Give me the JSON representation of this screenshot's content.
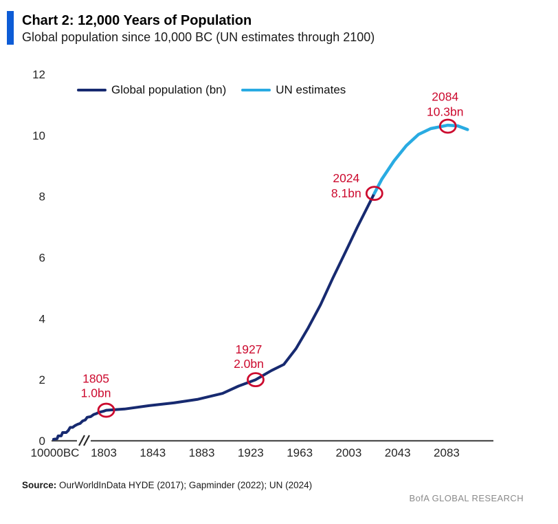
{
  "header": {
    "title": "Chart 2: 12,000 Years of Population",
    "subtitle": "Global population since 10,000 BC (UN estimates through 2100)"
  },
  "legend": [
    {
      "label": "Global population (bn)",
      "color": "#172a70"
    },
    {
      "label": "UN estimates",
      "color": "#29abe2"
    }
  ],
  "footer": {
    "source_label": "Source:",
    "source_text": " OurWorldInData HYDE (2017); Gapminder (2022); UN (2024)",
    "brand": "BofA GLOBAL RESEARCH"
  },
  "colors": {
    "accent_bar": "#0d5cd6",
    "navy_line": "#172a70",
    "light_blue_line": "#29abe2",
    "annotation_red": "#cc0a2e",
    "axis_line": "#4d4d4d",
    "axis_text": "#262626",
    "brand_gray": "#8a8a8a"
  },
  "chart_data": {
    "type": "line",
    "title": "12,000 Years of Population",
    "ylabel": "Global population (bn)",
    "ylim": [
      0,
      12
    ],
    "y_axis": {
      "ticks": [
        0,
        2,
        4,
        6,
        8,
        10,
        12
      ]
    },
    "x_axis": {
      "break_after_origin": true,
      "ticks": [
        {
          "label": "10000BC"
        },
        {
          "label": "1803",
          "year": 1803
        },
        {
          "label": "1843",
          "year": 1843
        },
        {
          "label": "1883",
          "year": 1883
        },
        {
          "label": "1923",
          "year": 1923
        },
        {
          "label": "1963",
          "year": 1963
        },
        {
          "label": "2003",
          "year": 2003
        },
        {
          "label": "2043",
          "year": 2043
        },
        {
          "label": "2083",
          "year": 2083
        }
      ]
    },
    "series": [
      {
        "name": "Global population (bn)",
        "color": "#172a70",
        "compressed_points": [
          [
            0,
            0.05
          ],
          [
            0.07,
            0.07
          ],
          [
            0.09,
            0.16
          ],
          [
            0.15,
            0.16
          ],
          [
            0.18,
            0.27
          ],
          [
            0.25,
            0.27
          ],
          [
            0.29,
            0.33
          ],
          [
            0.33,
            0.44
          ],
          [
            0.38,
            0.44
          ],
          [
            0.43,
            0.5
          ],
          [
            0.48,
            0.54
          ],
          [
            0.53,
            0.57
          ],
          [
            0.58,
            0.65
          ],
          [
            0.63,
            0.68
          ],
          [
            0.67,
            0.77
          ],
          [
            0.74,
            0.79
          ],
          [
            0.8,
            0.86
          ],
          [
            0.85,
            0.89
          ],
          [
            0.9,
            0.93
          ],
          [
            1,
            0.97
          ]
        ],
        "year_points": [
          [
            1803,
            0.97
          ],
          [
            1805,
            1.0
          ],
          [
            1820,
            1.04
          ],
          [
            1840,
            1.15
          ],
          [
            1860,
            1.24
          ],
          [
            1880,
            1.36
          ],
          [
            1900,
            1.55
          ],
          [
            1913,
            1.79
          ],
          [
            1927,
            2.0
          ],
          [
            1940,
            2.3
          ],
          [
            1950,
            2.5
          ],
          [
            1960,
            3.02
          ],
          [
            1970,
            3.7
          ],
          [
            1980,
            4.45
          ],
          [
            1990,
            5.32
          ],
          [
            2000,
            6.15
          ],
          [
            2010,
            6.99
          ],
          [
            2024,
            8.1
          ]
        ]
      },
      {
        "name": "UN estimates",
        "color": "#29abe2",
        "year_points": [
          [
            2024,
            8.1
          ],
          [
            2030,
            8.56
          ],
          [
            2040,
            9.16
          ],
          [
            2050,
            9.66
          ],
          [
            2060,
            10.03
          ],
          [
            2070,
            10.22
          ],
          [
            2084,
            10.33
          ],
          [
            2092,
            10.31
          ],
          [
            2100,
            10.19
          ]
        ]
      }
    ],
    "annotations": [
      {
        "year": 1805,
        "value": 1.0,
        "lines": [
          "1805",
          "1.0bn"
        ]
      },
      {
        "year": 1927,
        "value": 2.0,
        "lines": [
          "1927",
          "2.0bn"
        ]
      },
      {
        "year": 2024,
        "value": 8.1,
        "lines": [
          "2024",
          "8.1bn"
        ]
      },
      {
        "year": 2084,
        "value": 10.3,
        "lines": [
          "2084",
          "10.3bn"
        ]
      }
    ]
  }
}
